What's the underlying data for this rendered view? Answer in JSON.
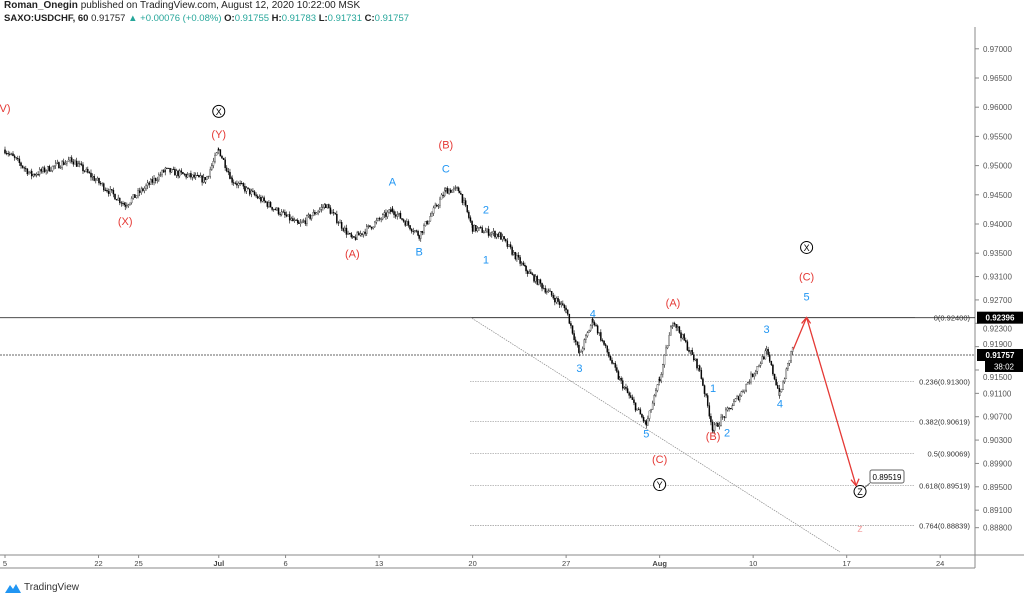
{
  "header": {
    "author": "Roman_Onegin",
    "published": "published on TradingView.com, August 12, 2020 10:22:00 MSK",
    "symbol": "SAXO:USDCHF, 60",
    "last": "0.91757",
    "change": "+0.00076 (+0.08%)",
    "o_label": "O:",
    "o": "0.91755",
    "h_label": "H:",
    "h": "0.91783",
    "l_label": "L:",
    "l": "0.91731",
    "c_label": "C:",
    "c": "0.91757"
  },
  "footer": {
    "brand": "TradingView"
  },
  "colors": {
    "red": "#e53935",
    "blue": "#2196f3",
    "pink": "#f4a6a6",
    "up": "#26a69a"
  },
  "chart_data": {
    "type": "candlestick",
    "ylim": [
      0.887,
      0.9735
    ],
    "y_ticks": [
      "0.97000",
      "0.96500",
      "0.96000",
      "0.95500",
      "0.95000",
      "0.94500",
      "0.94000",
      "0.93500",
      "0.93100",
      "0.92700",
      "0.92300",
      "0.91900",
      "0.91500",
      "0.91100",
      "0.90700",
      "0.90300",
      "0.89900",
      "0.89500",
      "0.89100",
      "0.88800"
    ],
    "x_ticks": [
      {
        "label": "5",
        "date": "2020-06-15"
      },
      {
        "label": "22",
        "date": "2020-06-22"
      },
      {
        "label": "25",
        "date": "2020-06-25"
      },
      {
        "label": "Jul",
        "date": "2020-07-01"
      },
      {
        "label": "6",
        "date": "2020-07-06"
      },
      {
        "label": "13",
        "date": "2020-07-13"
      },
      {
        "label": "20",
        "date": "2020-07-20"
      },
      {
        "label": "27",
        "date": "2020-07-27"
      },
      {
        "label": "Aug",
        "date": "2020-08-03"
      },
      {
        "label": "10",
        "date": "2020-08-10"
      },
      {
        "label": "17",
        "date": "2020-08-17"
      },
      {
        "label": "24",
        "date": "2020-08-24"
      }
    ],
    "price_path": [
      [
        "2020-06-15",
        0.9527
      ],
      [
        "2020-06-17",
        0.9484
      ],
      [
        "2020-06-20",
        0.951
      ],
      [
        "2020-06-24",
        0.9433
      ],
      [
        "2020-06-27",
        0.9492
      ],
      [
        "2020-06-30",
        0.9475
      ],
      [
        "2020-07-01",
        0.9527
      ],
      [
        "2020-07-02",
        0.9475
      ],
      [
        "2020-07-07",
        0.9398
      ],
      [
        "2020-07-09",
        0.9433
      ],
      [
        "2020-07-11",
        0.9373
      ],
      [
        "2020-07-14",
        0.9424
      ],
      [
        "2020-07-16",
        0.9381
      ],
      [
        "2020-07-18",
        0.9458
      ],
      [
        "2020-07-19",
        0.9458
      ],
      [
        "2020-07-20",
        0.9393
      ],
      [
        "2020-07-22",
        0.9381
      ],
      [
        "2020-07-24",
        0.9321
      ],
      [
        "2020-07-27",
        0.9253
      ],
      [
        "2020-07-28",
        0.9176
      ],
      [
        "2020-07-29",
        0.9236
      ],
      [
        "2020-07-31",
        0.9133
      ],
      [
        "2020-08-02",
        0.9056
      ],
      [
        "2020-08-03",
        0.9133
      ],
      [
        "2020-08-04",
        0.9236
      ],
      [
        "2020-08-06",
        0.915
      ],
      [
        "2020-08-07",
        0.9047
      ],
      [
        "2020-08-09",
        0.9107
      ],
      [
        "2020-08-11",
        0.9181
      ],
      [
        "2020-08-12",
        0.9107
      ],
      [
        "2020-08-13",
        0.9193
      ]
    ],
    "price_lines": [
      {
        "label": "0.92396",
        "price": 0.92396,
        "style": "solid"
      },
      {
        "label": "0.91757",
        "price": 0.91757,
        "style": "dashed",
        "countdown": "38:02"
      }
    ],
    "fib_levels": [
      {
        "label": "0(0.92400)",
        "price": 0.924
      },
      {
        "label": "0.236(0.91300)",
        "price": 0.913
      },
      {
        "label": "0.382(0.90619)",
        "price": 0.90619
      },
      {
        "label": "0.5(0.90069)",
        "price": 0.90069
      },
      {
        "label": "0.618(0.89519)",
        "price": 0.89519
      },
      {
        "label": "0.764(0.88839)",
        "price": 0.88839
      }
    ],
    "target_label": "0.89519",
    "wave_labels": [
      {
        "text": "V)",
        "date": "2020-06-15",
        "price": 0.9592,
        "color": "red"
      },
      {
        "text": "X",
        "date": "2020-07-01",
        "price": 0.9586,
        "color": "circle"
      },
      {
        "text": "(Y)",
        "date": "2020-07-01",
        "price": 0.9547,
        "color": "red"
      },
      {
        "text": "(X)",
        "date": "2020-06-24",
        "price": 0.9398,
        "color": "red"
      },
      {
        "text": "(A)",
        "date": "2020-07-11",
        "price": 0.9343,
        "color": "red"
      },
      {
        "text": "(B)",
        "date": "2020-07-18",
        "price": 0.9529,
        "color": "red"
      },
      {
        "text": "A",
        "date": "2020-07-14",
        "price": 0.9466,
        "color": "blue"
      },
      {
        "text": "C",
        "date": "2020-07-18",
        "price": 0.9488,
        "color": "blue"
      },
      {
        "text": "B",
        "date": "2020-07-16",
        "price": 0.9346,
        "color": "blue"
      },
      {
        "text": "2",
        "date": "2020-07-21",
        "price": 0.9418,
        "color": "blue"
      },
      {
        "text": "1",
        "date": "2020-07-21",
        "price": 0.9332,
        "color": "blue"
      },
      {
        "text": "4",
        "date": "2020-07-29",
        "price": 0.924,
        "color": "blue"
      },
      {
        "text": "3",
        "date": "2020-07-28",
        "price": 0.9147,
        "color": "blue"
      },
      {
        "text": "(A)",
        "date": "2020-08-04",
        "price": 0.9259,
        "color": "red"
      },
      {
        "text": "5",
        "date": "2020-08-02",
        "price": 0.9034,
        "color": "blue"
      },
      {
        "text": "(C)",
        "date": "2020-08-03",
        "price": 0.8991,
        "color": "red"
      },
      {
        "text": "Y",
        "date": "2020-08-03",
        "price": 0.8947,
        "color": "circle"
      },
      {
        "text": "1",
        "date": "2020-08-07",
        "price": 0.9112,
        "color": "blue"
      },
      {
        "text": "(B)",
        "date": "2020-08-07",
        "price": 0.903,
        "color": "red"
      },
      {
        "text": "2",
        "date": "2020-08-08",
        "price": 0.9036,
        "color": "blue"
      },
      {
        "text": "3",
        "date": "2020-08-11",
        "price": 0.9213,
        "color": "blue"
      },
      {
        "text": "4",
        "date": "2020-08-12",
        "price": 0.9086,
        "color": "blue"
      },
      {
        "text": "X",
        "date": "2020-08-14",
        "price": 0.9353,
        "color": "circle"
      },
      {
        "text": "(C)",
        "date": "2020-08-14",
        "price": 0.9303,
        "color": "red"
      },
      {
        "text": "5",
        "date": "2020-08-14",
        "price": 0.9269,
        "color": "blue"
      },
      {
        "text": "Z",
        "date": "2020-08-18",
        "price": 0.8935,
        "color": "circle"
      },
      {
        "text": "z",
        "date": "2020-08-18",
        "price": 0.8873,
        "color": "pink"
      }
    ]
  }
}
